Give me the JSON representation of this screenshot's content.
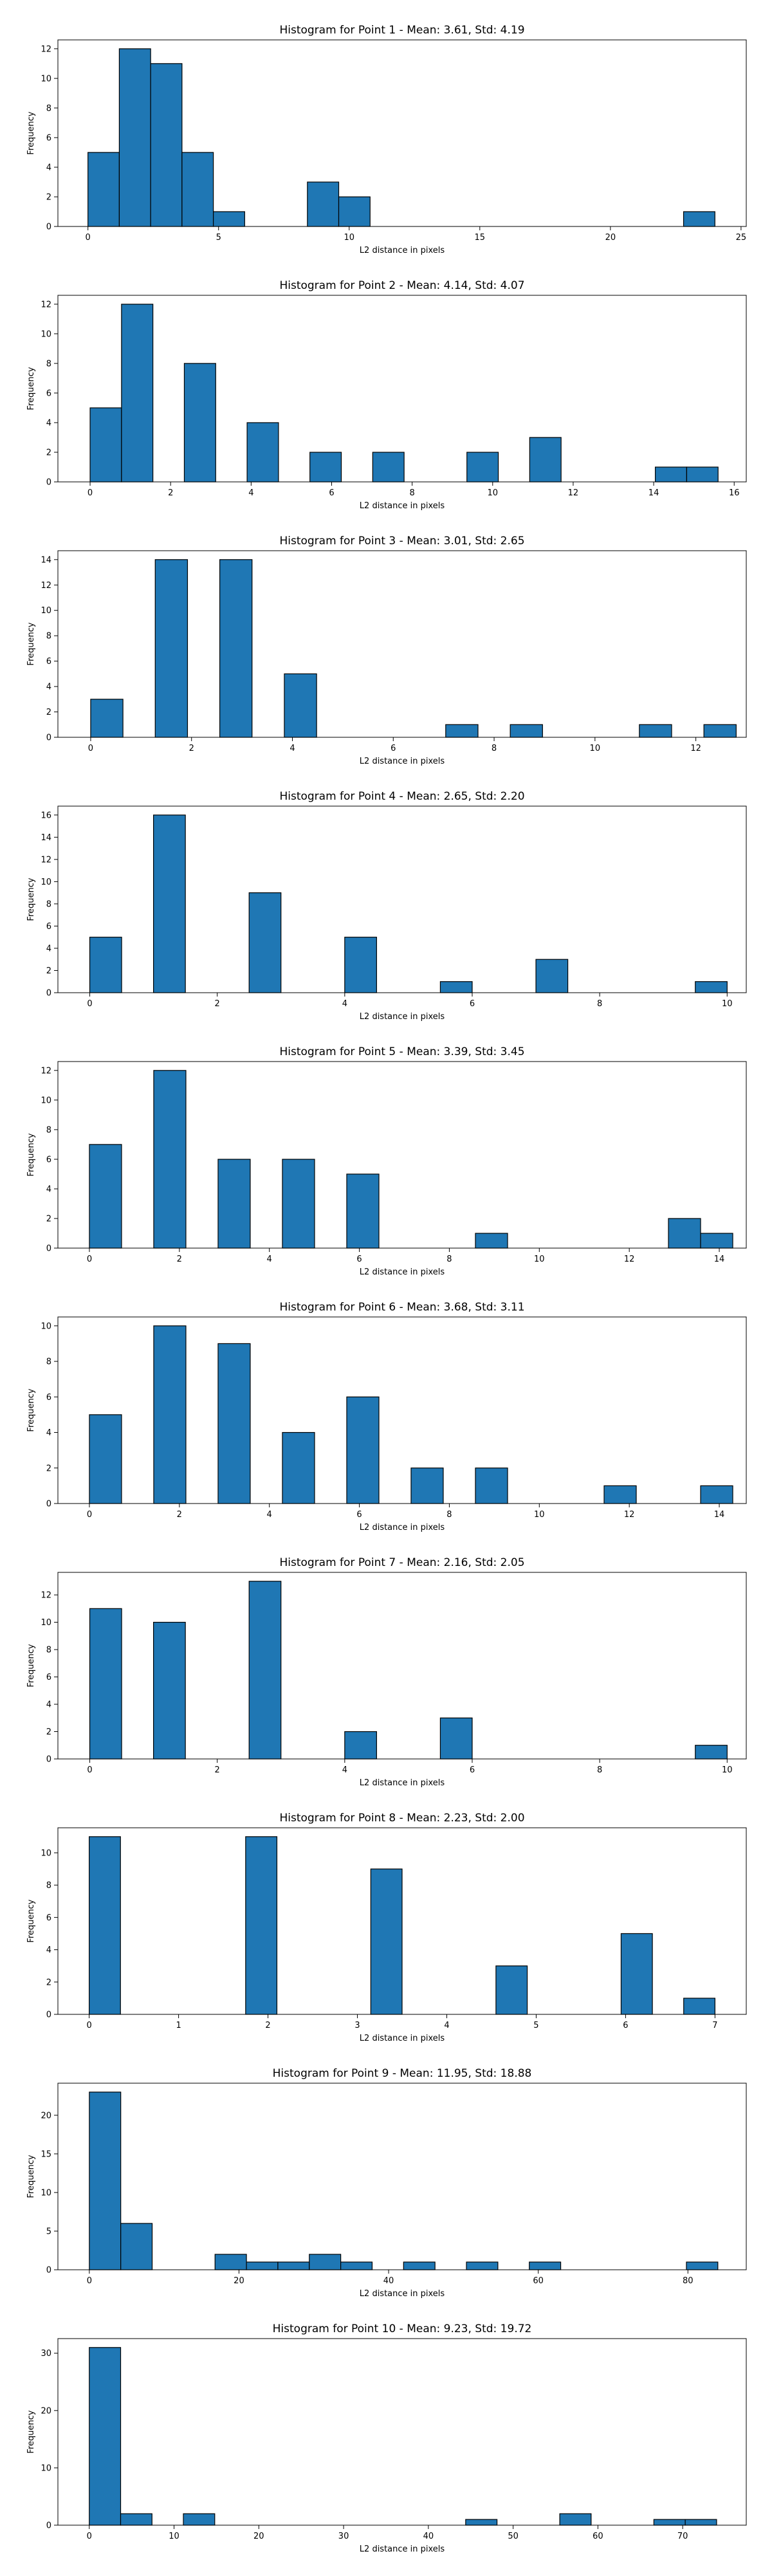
{
  "chart_data": [
    {
      "type": "bar",
      "title": "Histogram for Point 1 - Mean: 3.61, Std: 4.19",
      "xlabel": "L2 distance in pixels",
      "ylabel": "Frequency",
      "xlim": [
        -1.15,
        25.2
      ],
      "ylim": [
        0,
        12.6
      ],
      "xticks": [
        0,
        5,
        10,
        15,
        20,
        25
      ],
      "yticks": [
        0,
        2,
        4,
        6,
        8,
        10,
        12
      ],
      "bin_start": 0,
      "bin_width": 1.2,
      "counts": [
        5,
        12,
        11,
        5,
        1,
        0,
        0,
        3,
        2,
        0,
        0,
        0,
        0,
        0,
        0,
        0,
        0,
        0,
        0,
        1
      ]
    },
    {
      "type": "bar",
      "title": "Histogram for Point 2 - Mean: 4.14, Std: 4.07",
      "xlabel": "L2 distance in pixels",
      "ylabel": "Frequency",
      "xlim": [
        -0.8,
        16.3
      ],
      "ylim": [
        0,
        12.6
      ],
      "xticks": [
        0,
        2,
        4,
        6,
        8,
        10,
        12,
        14,
        16
      ],
      "yticks": [
        0,
        2,
        4,
        6,
        8,
        10,
        12
      ],
      "bin_start": 0,
      "bin_width": 0.78,
      "counts": [
        5,
        12,
        0,
        8,
        0,
        4,
        0,
        2,
        0,
        2,
        0,
        0,
        2,
        0,
        3,
        0,
        0,
        0,
        1,
        1
      ]
    },
    {
      "type": "bar",
      "title": "Histogram for Point 3 - Mean: 3.01, Std: 2.65",
      "xlabel": "L2 distance in pixels",
      "ylabel": "Frequency",
      "xlim": [
        -0.65,
        13.0
      ],
      "ylim": [
        0,
        14.7
      ],
      "xticks": [
        0,
        2,
        4,
        6,
        8,
        10,
        12
      ],
      "yticks": [
        0,
        2,
        4,
        6,
        8,
        10,
        12,
        14
      ],
      "bin_start": 0,
      "bin_width": 0.64,
      "counts": [
        3,
        0,
        14,
        0,
        14,
        0,
        5,
        0,
        0,
        0,
        0,
        1,
        0,
        1,
        0,
        0,
        0,
        1,
        0,
        1
      ]
    },
    {
      "type": "bar",
      "title": "Histogram for Point 4 - Mean: 2.65, Std: 2.20",
      "xlabel": "L2 distance in pixels",
      "ylabel": "Frequency",
      "xlim": [
        -0.5,
        10.3
      ],
      "ylim": [
        0,
        16.8
      ],
      "xticks": [
        0,
        2,
        4,
        6,
        8,
        10
      ],
      "yticks": [
        0,
        2,
        4,
        6,
        8,
        10,
        12,
        14,
        16
      ],
      "bin_start": 0,
      "bin_width": 0.5,
      "counts": [
        5,
        0,
        16,
        0,
        0,
        9,
        0,
        0,
        5,
        0,
        0,
        1,
        0,
        0,
        3,
        0,
        0,
        0,
        0,
        1
      ]
    },
    {
      "type": "bar",
      "title": "Histogram for Point 5 - Mean: 3.39, Std: 3.45",
      "xlabel": "L2 distance in pixels",
      "ylabel": "Frequency",
      "xlim": [
        -0.7,
        14.6
      ],
      "ylim": [
        0,
        12.6
      ],
      "xticks": [
        0,
        2,
        4,
        6,
        8,
        10,
        12,
        14
      ],
      "yticks": [
        0,
        2,
        4,
        6,
        8,
        10,
        12
      ],
      "bin_start": 0,
      "bin_width": 0.715,
      "counts": [
        7,
        0,
        12,
        0,
        6,
        0,
        6,
        0,
        5,
        0,
        0,
        0,
        1,
        0,
        0,
        0,
        0,
        0,
        2,
        1
      ]
    },
    {
      "type": "bar",
      "title": "Histogram for Point 6 - Mean: 3.68, Std: 3.11",
      "xlabel": "L2 distance in pixels",
      "ylabel": "Frequency",
      "xlim": [
        -0.7,
        14.6
      ],
      "ylim": [
        0,
        10.5
      ],
      "xticks": [
        0,
        2,
        4,
        6,
        8,
        10,
        12,
        14
      ],
      "yticks": [
        0,
        2,
        4,
        6,
        8,
        10
      ],
      "bin_start": 0,
      "bin_width": 0.715,
      "counts": [
        5,
        0,
        10,
        0,
        9,
        0,
        4,
        0,
        6,
        0,
        2,
        0,
        2,
        0,
        0,
        0,
        1,
        0,
        0,
        1
      ]
    },
    {
      "type": "bar",
      "title": "Histogram for Point 7 - Mean: 2.16, Std: 2.05",
      "xlabel": "L2 distance in pixels",
      "ylabel": "Frequency",
      "xlim": [
        -0.5,
        10.3
      ],
      "ylim": [
        0,
        13.65
      ],
      "xticks": [
        0,
        2,
        4,
        6,
        8,
        10
      ],
      "yticks": [
        0,
        2,
        4,
        6,
        8,
        10,
        12
      ],
      "bin_start": 0,
      "bin_width": 0.5,
      "counts": [
        11,
        0,
        10,
        0,
        0,
        13,
        0,
        0,
        2,
        0,
        0,
        3,
        0,
        0,
        0,
        0,
        0,
        0,
        0,
        1
      ]
    },
    {
      "type": "bar",
      "title": "Histogram for Point 8 - Mean: 2.23, Std: 2.00",
      "xlabel": "L2 distance in pixels",
      "ylabel": "Frequency",
      "xlim": [
        -0.35,
        7.35
      ],
      "ylim": [
        0,
        11.55
      ],
      "xticks": [
        0,
        1,
        2,
        3,
        4,
        5,
        6,
        7
      ],
      "yticks": [
        0,
        2,
        4,
        6,
        8,
        10
      ],
      "bin_start": 0,
      "bin_width": 0.35,
      "counts": [
        11,
        0,
        0,
        0,
        0,
        11,
        0,
        0,
        0,
        9,
        0,
        0,
        0,
        3,
        0,
        0,
        0,
        5,
        0,
        1
      ]
    },
    {
      "type": "bar",
      "title": "Histogram for Point 9 - Mean: 11.95, Std: 18.88",
      "xlabel": "L2 distance in pixels",
      "ylabel": "Frequency",
      "xlim": [
        -4.2,
        87.8
      ],
      "ylim": [
        0,
        24.15
      ],
      "xticks": [
        0,
        20,
        40,
        60,
        80
      ],
      "yticks": [
        0,
        5,
        10,
        15,
        20
      ],
      "bin_start": 0,
      "bin_width": 4.2,
      "counts": [
        23,
        6,
        0,
        0,
        2,
        1,
        1,
        2,
        1,
        0,
        1,
        0,
        1,
        0,
        1,
        0,
        0,
        0,
        0,
        1
      ]
    },
    {
      "type": "bar",
      "title": "Histogram for Point 10 - Mean: 9.23, Std: 19.72",
      "xlabel": "L2 distance in pixels",
      "ylabel": "Frequency",
      "xlim": [
        -3.7,
        77.5
      ],
      "ylim": [
        0,
        32.55
      ],
      "xticks": [
        0,
        10,
        20,
        30,
        40,
        50,
        60,
        70
      ],
      "yticks": [
        0,
        10,
        20,
        30
      ],
      "bin_start": 0,
      "bin_width": 3.7,
      "counts": [
        31,
        2,
        0,
        2,
        0,
        0,
        0,
        0,
        0,
        0,
        0,
        0,
        1,
        0,
        0,
        2,
        0,
        0,
        1,
        1
      ]
    }
  ],
  "colors": {
    "bar": "#1f77b4",
    "edge": "#000000"
  }
}
